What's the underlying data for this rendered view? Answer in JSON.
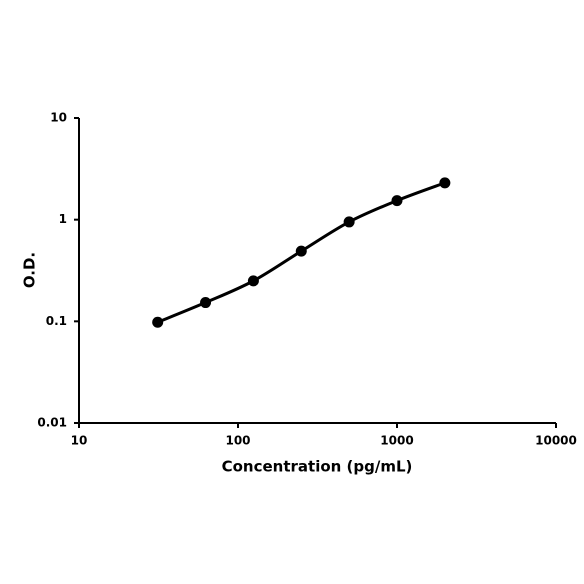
{
  "chart_data": {
    "type": "line",
    "x_label": "Concentration (pg/mL)",
    "y_label": "O.D.",
    "x": [
      31.25,
      62.5,
      125,
      250,
      500,
      1000,
      2000
    ],
    "series": [
      {
        "color": "#000000",
        "values": [
          0.098,
          0.153,
          0.25,
          0.49,
          0.95,
          1.54,
          2.3
        ]
      }
    ],
    "xscale": "log",
    "yscale": "log",
    "xlim": [
      10,
      10000
    ],
    "xticks": [
      10,
      100,
      1000,
      10000
    ],
    "ylim": [
      0.01,
      10
    ],
    "yticks": [
      0.01,
      0.1,
      1,
      10
    ],
    "grid": false
  }
}
